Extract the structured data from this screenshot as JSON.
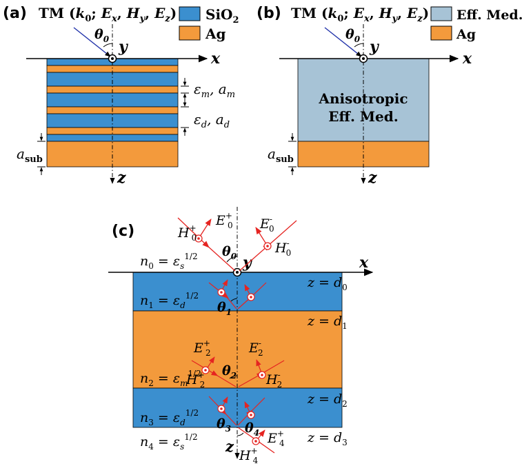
{
  "colors": {
    "sio2": "#3b8fcf",
    "ag": "#f39a3c",
    "eff_medium": "#a7c3d6",
    "arrow_red": "#e52421",
    "line": "#000000"
  },
  "panel_a": {
    "label": "(a)",
    "incidence_head": "TM (",
    "incidence_k": "k",
    "incidence_k_sub": "0",
    "incidence_sep": "; ",
    "incidence_E": "E",
    "incidence_E_sub": "x",
    "incidence_H": "H",
    "incidence_H_sub": "y",
    "incidence_Ez": "E",
    "incidence_Ez_sub": "z",
    "incidence_close": ")",
    "theta": "θ",
    "theta_sub": "0",
    "y_axis": "y",
    "x_axis": "x",
    "z_axis": "z",
    "legend_sio2": "SiO",
    "legend_sio2_sub": "2",
    "legend_ag": "Ag",
    "metal_label": "ε",
    "metal_label_sub": "m",
    "metal_a": "a",
    "metal_a_sub": "m",
    "diel_label": "ε",
    "diel_label_sub": "d",
    "diel_a": "a",
    "diel_a_sub": "d",
    "sub_label": "a",
    "sub_label_sub": "sub",
    "comma": ", "
  },
  "panel_b": {
    "label": "(b)",
    "legend_eff": "Eff. Med.",
    "legend_ag": "Ag",
    "medium_line1": "Anisotropic",
    "medium_line2": "Eff. Med.",
    "sub_label": "a",
    "sub_label_sub": "sub"
  },
  "panel_c": {
    "label": "(c)",
    "n0": "n",
    "n0_sub": "0",
    "n0_eq": " = ε",
    "n0_eps_sub": "s",
    "n0_sup": "1/2",
    "n1": "n",
    "n1_sub": "1",
    "n1_eq": " = ε",
    "n1_eps_sub": "d",
    "n1_sup": "1/2",
    "n2": "n",
    "n2_sub": "2",
    "n2_eq": " = ε",
    "n2_eps_sub": "m",
    "n2_sup": "1/2",
    "n3": "n",
    "n3_sub": "3",
    "n3_eq": " = ε",
    "n3_eps_sub": "d",
    "n3_sup": "1/2",
    "n4": "n",
    "n4_sub": "4",
    "n4_eq": " = ε",
    "n4_eps_sub": "s",
    "n4_sup": "1/2",
    "z_d0": "z = d",
    "z_d0_sub": "0",
    "z_d1": "z = d",
    "z_d1_sub": "1",
    "z_d2": "z = d",
    "z_d2_sub": "2",
    "z_d3": "z = d",
    "z_d3_sub": "3",
    "E0p": "E",
    "E0p_sub": "0",
    "E0p_sup": "+",
    "H0p": "H",
    "H0p_sub": "0",
    "H0p_sup": "+",
    "E0m": "E",
    "E0m_sub": "0",
    "E0m_sup": "-",
    "H0m": "H",
    "H0m_sub": "0",
    "H0m_sup": "-",
    "E2p": "E",
    "E2p_sub": "2",
    "E2p_sup": "+",
    "H2p": "H",
    "H2p_sub": "2",
    "H2p_sup": "+",
    "E2m": "E",
    "E2m_sub": "2",
    "E2m_sup": "-",
    "H2m": "H",
    "H2m_sub": "2",
    "H2m_sup": "-",
    "E4p": "E",
    "E4p_sub": "4",
    "E4p_sup": "+",
    "H4p": "H",
    "H4p_sub": "4",
    "H4p_sup": "+",
    "theta": "θ",
    "th0": "0",
    "th1": "1",
    "th2": "2",
    "th3": "3",
    "th4": "4",
    "x_axis": "x",
    "y_axis": "y",
    "z_axis": "z"
  }
}
